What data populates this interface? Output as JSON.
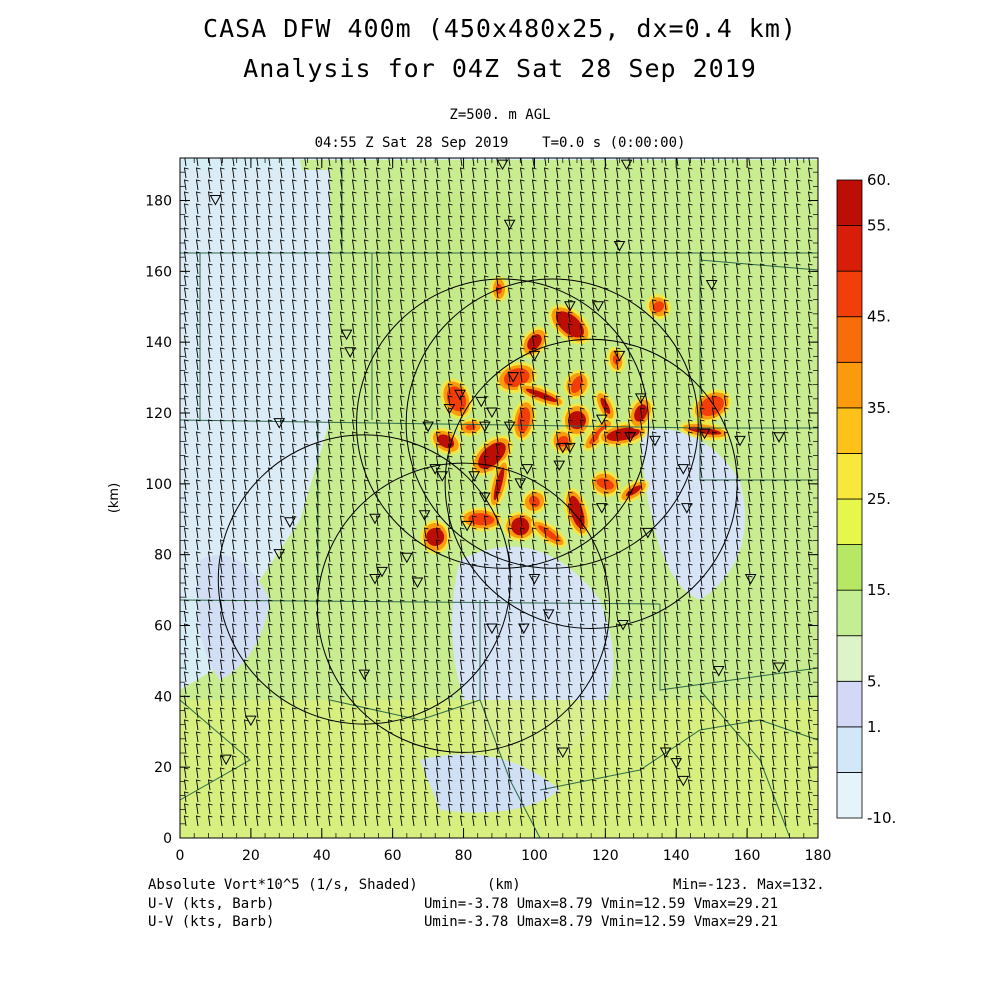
{
  "header": {
    "title_line1": "CASA DFW 400m (450x480x25, dx=0.4 km)",
    "title_line2": "Analysis for 04Z Sat 28 Sep 2019",
    "level": "Z=500. m AGL",
    "valid_time": "04:55 Z Sat 28 Sep 2019    T=0.0 s (0:00:00)"
  },
  "footer": {
    "field1": "Absolute Vort*10^5 (1/s, Shaded)",
    "field2": "U-V (kts, Barb)",
    "field3": "U-V (kts, Barb)",
    "xunit": "(km)",
    "minmax": "Min=-123. Max=132.",
    "uv_stats1": "Umin=-3.78 Umax=8.79 Vmin=12.59 Vmax=29.21",
    "uv_stats2": "Umin=-3.78 Umax=8.79 Vmin=12.59 Vmax=29.21"
  },
  "colors": {
    "background_low": "#d8eef6",
    "light_green": "#c6ec8c",
    "yellow_green": "#dcf07a"
  },
  "chart_data": {
    "type": "heatmap",
    "title": "CASA DFW 400m (450x480x25, dx=0.4 km)",
    "xlabel": "(km)",
    "ylabel": "(km)",
    "xlim": [
      0,
      180
    ],
    "ylim": [
      0,
      192
    ],
    "x_ticks": [
      0,
      20,
      40,
      60,
      80,
      100,
      120,
      140,
      160,
      180
    ],
    "y_ticks": [
      0,
      20,
      40,
      60,
      80,
      100,
      120,
      140,
      160,
      180
    ],
    "colorbar": {
      "levels": [
        -10,
        -5,
        1,
        5,
        10,
        15,
        20,
        25,
        30,
        35,
        40,
        45,
        50,
        55,
        60
      ],
      "labels": [
        "-10.",
        "1.",
        "5.",
        "15.",
        "25.",
        "35.",
        "45.",
        "55.",
        "60."
      ],
      "label_values": [
        -10,
        1,
        5,
        15,
        25,
        35,
        45,
        55,
        60
      ],
      "colors": [
        "#e4f4fa",
        "#d2e8f8",
        "#d2d8f6",
        "#dcf4c8",
        "#c4ee94",
        "#b6e866",
        "#e6f64a",
        "#f8e83c",
        "#fdc21a",
        "#fb9a0c",
        "#f86c0a",
        "#f23e0a",
        "#d81e08",
        "#bc0e04"
      ]
    },
    "field_range": {
      "min": -123,
      "max": 132
    },
    "radar_circles_center_km": [
      [
        105,
        117
      ],
      [
        52,
        73
      ],
      [
        80,
        65
      ],
      [
        91,
        117
      ],
      [
        116,
        100
      ]
    ],
    "radar_circle_radius_km": 40
  }
}
